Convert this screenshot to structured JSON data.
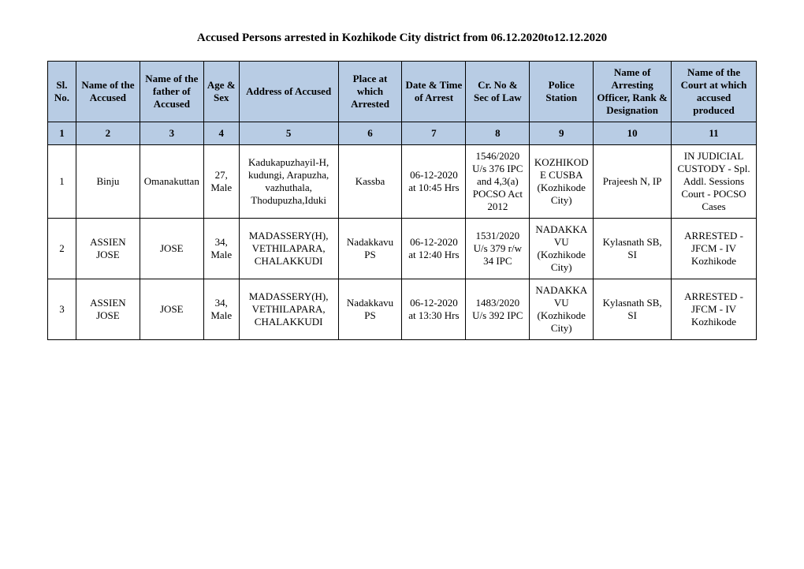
{
  "title": "Accused Persons arrested in    Kozhikode City  district from  06.12.2020to12.12.2020",
  "columns": [
    "Sl. No.",
    "Name of the Accused",
    "Name of the father of Accused",
    "Age & Sex",
    "Address of Accused",
    "Place at which Arrested",
    "Date & Time of Arrest",
    "Cr. No & Sec of Law",
    "Police Station",
    "Name of Arresting Officer, Rank & Designation",
    "Name of the Court at which accused produced"
  ],
  "numrow": [
    "1",
    "2",
    "3",
    "4",
    "5",
    "6",
    "7",
    "8",
    "9",
    "10",
    "11"
  ],
  "rows": [
    {
      "sl": "1",
      "name": "Binju",
      "father": "Omanakuttan",
      "age_sex": "27, Male",
      "address": "Kadukapuzhayil-H, kudungi, Arapuzha, vazhuthala, Thodupuzha,Iduki",
      "place": "Kassba",
      "datetime": "06-12-2020 at 10:45 Hrs",
      "crno": "1546/2020 U/s 376 IPC and 4,3(a) POCSO Act 2012",
      "station": "KOZHIKODE CUSBA (Kozhikode City)",
      "officer": "Prajeesh N, IP",
      "court": "IN JUDICIAL CUSTODY - Spl. Addl. Sessions Court - POCSO Cases"
    },
    {
      "sl": "2",
      "name": "ASSIEN JOSE",
      "father": "JOSE",
      "age_sex": "34, Male",
      "address": "MADASSERY(H), VETHILAPARA, CHALAKKUDI",
      "place": "Nadakkavu PS",
      "datetime": "06-12-2020 at 12:40 Hrs",
      "crno": "1531/2020 U/s 379 r/w 34 IPC",
      "station": "NADAKKAVU (Kozhikode City)",
      "officer": "Kylasnath SB, SI",
      "court": "ARRESTED - JFCM - IV Kozhikode"
    },
    {
      "sl": "3",
      "name": "ASSIEN JOSE",
      "father": "JOSE",
      "age_sex": "34, Male",
      "address": "MADASSERY(H), VETHILAPARA, CHALAKKUDI",
      "place": "Nadakkavu PS",
      "datetime": "06-12-2020 at 13:30 Hrs",
      "crno": "1483/2020 U/s 392 IPC",
      "station": "NADAKKAVU (Kozhikode City)",
      "officer": "Kylasnath SB, SI",
      "court": "ARRESTED - JFCM - IV Kozhikode"
    }
  ]
}
